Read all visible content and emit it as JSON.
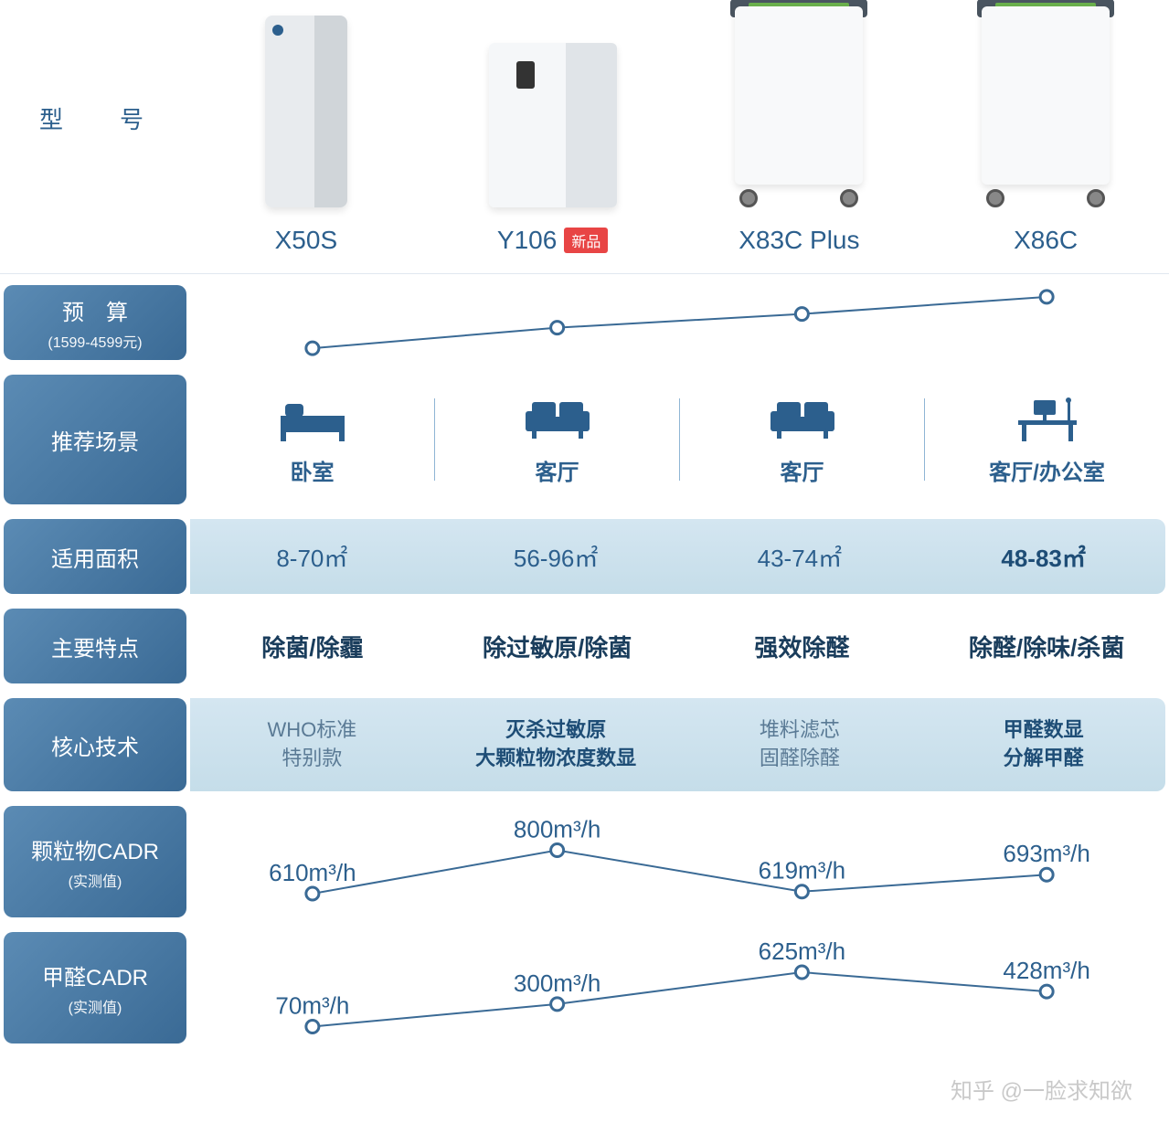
{
  "colors": {
    "primary": "#2c5f8d",
    "label_gradient_from": "#5b8bb4",
    "label_gradient_to": "#3a6a95",
    "row_bg_light": "#d4e6f1",
    "divider": "#8fb5d4",
    "badge_bg": "#e84545",
    "line": "#3a6a95",
    "dot_fill": "#ffffff",
    "dot_stroke": "#3a6a95"
  },
  "header": {
    "label": "型　号",
    "products": [
      {
        "name": "X50S",
        "type": "tall",
        "badge": null
      },
      {
        "name": "Y106",
        "type": "wide",
        "badge": "新品"
      },
      {
        "name": "X83C Plus",
        "type": "wheels",
        "badge": null
      },
      {
        "name": "X86C",
        "type": "wheels",
        "badge": null
      }
    ]
  },
  "rows": {
    "budget": {
      "label": "预　算",
      "sub": "(1599-4599元)",
      "type": "sparkline",
      "values": [
        1599,
        2800,
        3600,
        4599
      ],
      "ylim": [
        1500,
        4700
      ],
      "line_color": "#3a6a95",
      "dot_radius": 7
    },
    "scene": {
      "label": "推荐场景",
      "cells": [
        {
          "icon": "bed",
          "text": "卧室"
        },
        {
          "icon": "sofa",
          "text": "客厅"
        },
        {
          "icon": "sofa",
          "text": "客厅"
        },
        {
          "icon": "desk",
          "text": "客厅/办公室"
        }
      ]
    },
    "area": {
      "label": "适用面积",
      "cells": [
        "8-70㎡",
        "56-96㎡",
        "43-74㎡",
        "48-83㎡"
      ],
      "bold_last": true,
      "background": true
    },
    "features": {
      "label": "主要特点",
      "cells": [
        "除菌/除霾",
        "除过敏原/除菌",
        "强效除醛",
        "除醛/除味/杀菌"
      ],
      "background": false
    },
    "tech": {
      "label": "核心技术",
      "cells": [
        {
          "lines": [
            "WHO标准",
            "特别款"
          ],
          "em": false
        },
        {
          "lines": [
            "灭杀过敏原",
            "大颗粒物浓度数显"
          ],
          "em": true
        },
        {
          "lines": [
            "堆料滤芯",
            "固醛除醛"
          ],
          "em": false
        },
        {
          "lines": [
            "甲醛数显",
            "分解甲醛"
          ],
          "em": true
        }
      ],
      "background": true
    },
    "pm_cadr": {
      "label": "颗粒物CADR",
      "sub": "(实测值)",
      "type": "sparkline_labeled",
      "values": [
        610,
        800,
        619,
        693
      ],
      "unit": "m³/h",
      "ylim": [
        550,
        850
      ],
      "line_color": "#3a6a95",
      "dot_radius": 7
    },
    "hcho_cadr": {
      "label": "甲醛CADR",
      "sub": "(实测值)",
      "type": "sparkline_labeled",
      "values": [
        70,
        300,
        625,
        428
      ],
      "unit": "m³/h",
      "ylim": [
        0,
        700
      ],
      "line_color": "#3a6a95",
      "dot_radius": 7
    }
  },
  "watermark": "知乎 @一脸求知欲"
}
